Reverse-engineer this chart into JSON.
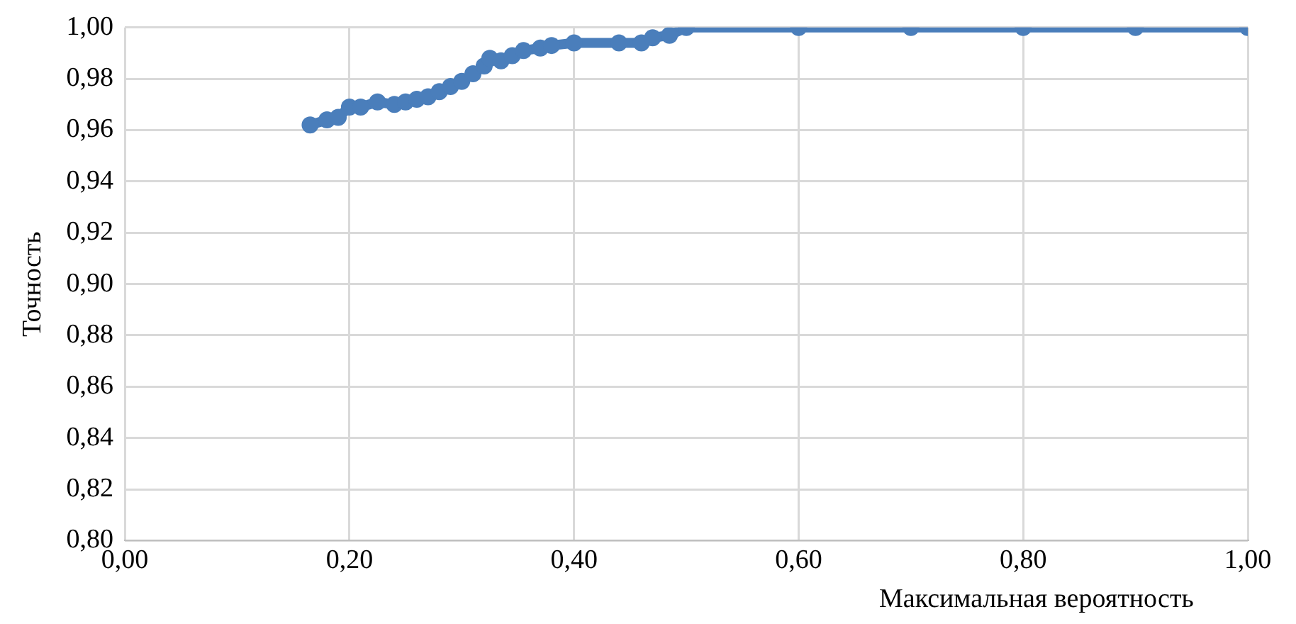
{
  "chart_data": {
    "type": "line",
    "xlabel": "Максимальная вероятность",
    "ylabel": "Точность",
    "series": [
      {
        "color": "#4a7ebb",
        "x": [
          0.165,
          0.18,
          0.19,
          0.2,
          0.21,
          0.225,
          0.24,
          0.25,
          0.26,
          0.27,
          0.28,
          0.29,
          0.3,
          0.31,
          0.32,
          0.325,
          0.335,
          0.345,
          0.355,
          0.37,
          0.38,
          0.4,
          0.44,
          0.46,
          0.47,
          0.485,
          0.5,
          0.6,
          0.7,
          0.8,
          0.9,
          1.0
        ],
        "values": [
          0.962,
          0.964,
          0.965,
          0.969,
          0.969,
          0.971,
          0.97,
          0.971,
          0.972,
          0.973,
          0.975,
          0.977,
          0.979,
          0.982,
          0.985,
          0.988,
          0.987,
          0.989,
          0.991,
          0.992,
          0.993,
          0.994,
          0.994,
          0.994,
          0.996,
          0.997,
          1.0,
          1.0,
          1.0,
          1.0,
          1.0,
          1.0
        ]
      }
    ],
    "xlim": [
      0,
      1
    ],
    "xticks": [
      {
        "value": 0,
        "label": "0,00"
      },
      {
        "value": 0.2,
        "label": "0,20"
      },
      {
        "value": 0.4,
        "label": "0,40"
      },
      {
        "value": 0.6,
        "label": "0,60"
      },
      {
        "value": 0.8,
        "label": "0,80"
      },
      {
        "value": 1,
        "label": "1,00"
      }
    ],
    "ylim": [
      0.8,
      1
    ],
    "yticks": [
      {
        "value": 0.8,
        "label": "0,80"
      },
      {
        "value": 0.82,
        "label": "0,82"
      },
      {
        "value": 0.84,
        "label": "0,84"
      },
      {
        "value": 0.86,
        "label": "0,86"
      },
      {
        "value": 0.88,
        "label": "0,88"
      },
      {
        "value": 0.9,
        "label": "0,90"
      },
      {
        "value": 0.92,
        "label": "0,92"
      },
      {
        "value": 0.94,
        "label": "0,94"
      },
      {
        "value": 0.96,
        "label": "0,96"
      },
      {
        "value": 0.98,
        "label": "0,98"
      },
      {
        "value": 1,
        "label": "1,00"
      }
    ],
    "grid": true,
    "legend": false,
    "marker": "circle",
    "line_style": "solid"
  }
}
